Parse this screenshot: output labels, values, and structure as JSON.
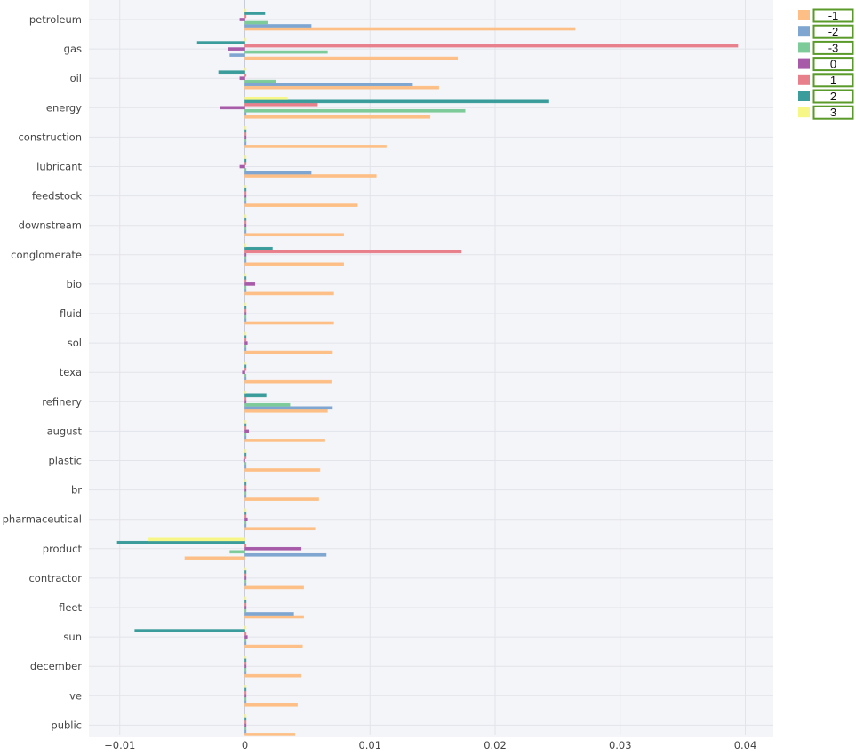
{
  "chart_data": {
    "type": "bar",
    "orientation": "horizontal",
    "categories": [
      "petroleum",
      "gas",
      "oil",
      "energy",
      "construction",
      "lubricant",
      "feedstock",
      "downstream",
      "conglomerate",
      "bio",
      "fluid",
      "sol",
      "texa",
      "refinery",
      "august",
      "plastic",
      "br",
      "pharmaceutical",
      "product",
      "contractor",
      "fleet",
      "sun",
      "december",
      "ve",
      "public"
    ],
    "xlim": [
      -0.0125,
      0.042
    ],
    "xticks": [
      -0.01,
      0,
      0.01,
      0.02,
      0.03,
      0.04
    ],
    "xtick_labels": [
      "−0.01",
      "0",
      "0.01",
      "0.02",
      "0.03",
      "0.04"
    ],
    "grid": true,
    "legend_position": "top-right",
    "series": [
      {
        "name": "-1",
        "color": "#fdbf86",
        "values": [
          0.0264,
          0.017,
          0.0155,
          0.0148,
          0.0113,
          0.0105,
          0.009,
          0.0079,
          0.0079,
          0.0071,
          0.0071,
          0.007,
          0.0069,
          0.0066,
          0.0064,
          0.006,
          0.0059,
          0.0056,
          -0.0048,
          0.0047,
          0.0047,
          0.0046,
          0.0045,
          0.0042,
          0.004
        ]
      },
      {
        "name": "-2",
        "color": "#7ea6d0",
        "values": [
          0.0053,
          -0.0012,
          0.0134,
          0.0001,
          0.0001,
          0.0053,
          0.0001,
          0.0001,
          0.0001,
          0.0001,
          0.0001,
          0.0001,
          0.0001,
          0.007,
          0.0001,
          0.0001,
          0.0001,
          0.0001,
          0.0065,
          0.0001,
          0.0039,
          0.0001,
          0.0001,
          0.0001,
          0.0001
        ]
      },
      {
        "name": "-3",
        "color": "#7dcb99",
        "values": [
          0.0018,
          0.0066,
          0.0025,
          0.0176,
          0.0001,
          0.0001,
          0.0001,
          0.0001,
          0.0001,
          0.0001,
          0.0001,
          0.0001,
          0.0001,
          0.0036,
          0.0001,
          0.0001,
          0.0001,
          0.0001,
          -0.0012,
          0.0001,
          0.0001,
          0.0001,
          0.0001,
          0.0001,
          0.0001
        ]
      },
      {
        "name": "0",
        "color": "#a65aa8",
        "values": [
          -0.0004,
          -0.0013,
          -0.0004,
          -0.002,
          0.0001,
          -0.0004,
          0.0001,
          0.0001,
          0.0001,
          0.0008,
          0.0001,
          0.0002,
          -0.0002,
          0.0001,
          0.0003,
          -0.0001,
          0.0001,
          0.0002,
          0.0045,
          0.0001,
          0.0001,
          0.0002,
          0.0001,
          0.0001,
          0.0001
        ]
      },
      {
        "name": "1",
        "color": "#e8808c",
        "values": [
          0.0001,
          0.0394,
          0.0001,
          0.0058,
          0.0001,
          0.0001,
          0.0001,
          0.0001,
          0.0173,
          0.0001,
          0.0001,
          0.0001,
          0.0001,
          0.0001,
          0.0001,
          0.0001,
          0.0001,
          0.0001,
          0.0001,
          0.0001,
          0.0001,
          0.0001,
          0.0001,
          0.0001,
          0.0001
        ]
      },
      {
        "name": "2",
        "color": "#3a9c9b",
        "values": [
          0.0016,
          -0.0038,
          -0.0021,
          0.0243,
          0.0001,
          0.0001,
          0.0001,
          0.0001,
          0.0022,
          0.0001,
          0.0001,
          0.0001,
          0.0001,
          0.0017,
          0.0001,
          0.0001,
          0.0001,
          0.0001,
          -0.0102,
          0.0001,
          0.0001,
          -0.0088,
          0.0001,
          0.0001,
          0.0001
        ]
      },
      {
        "name": "3",
        "color": "#f7f787",
        "values": [
          0.0001,
          0.0001,
          0.0001,
          0.0034,
          0.0001,
          0.0001,
          0.0001,
          0.0001,
          0.0001,
          0.0001,
          0.0001,
          0.0001,
          0.0001,
          0.0001,
          0.0001,
          0.0001,
          0.0001,
          0.0001,
          -0.0077,
          0.0001,
          0.0001,
          0.0001,
          0.0001,
          0.0001,
          0.0001
        ]
      }
    ]
  }
}
